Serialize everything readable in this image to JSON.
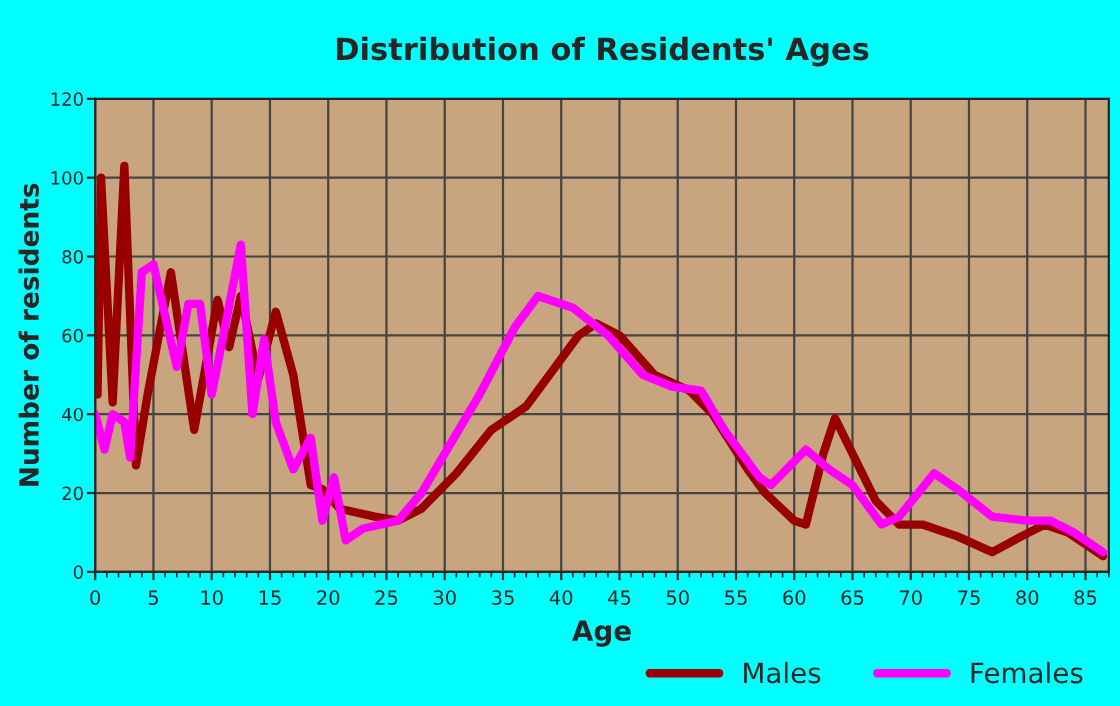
{
  "chart_data": {
    "type": "line",
    "title": "Distribution of Residents' Ages",
    "xlabel": "Age",
    "ylabel": "Number of residents",
    "xlim": [
      0,
      87
    ],
    "xticks": [
      0,
      5,
      10,
      15,
      20,
      25,
      30,
      35,
      40,
      45,
      50,
      55,
      60,
      65,
      70,
      75,
      80,
      85
    ],
    "ylim": [
      0,
      120
    ],
    "yticks": [
      0,
      20,
      40,
      60,
      80,
      100,
      120
    ],
    "grid": true,
    "legend": "bottom right",
    "series": [
      {
        "name": "Males",
        "color": "#990000",
        "x": [
          0,
          0.2,
          0.5,
          1.5,
          2.5,
          3.5,
          4.5,
          6.5,
          8.5,
          10.5,
          11.5,
          12.5,
          14,
          15.5,
          17,
          18.5,
          19.5,
          21,
          24,
          26,
          28,
          31,
          34,
          37,
          39,
          41.5,
          43,
          45,
          48,
          51,
          53,
          56,
          57.5,
          60,
          61,
          62.5,
          63.5,
          65,
          67,
          69,
          71,
          74,
          77,
          79.5,
          81.5,
          83.5,
          86.5
        ],
        "values": [
          64,
          45,
          100,
          43,
          103,
          27,
          45,
          76,
          36,
          69,
          57,
          70,
          49,
          66,
          50,
          22,
          21,
          16,
          14,
          13,
          16,
          25,
          36,
          42,
          50,
          60,
          63,
          60,
          50,
          46,
          40,
          26,
          20,
          13,
          12,
          30,
          39,
          30,
          18,
          12,
          12,
          9,
          5,
          9,
          12,
          10,
          4
        ]
      },
      {
        "name": "Females",
        "color": "#ff00ff",
        "x": [
          0,
          0.8,
          1.5,
          2.5,
          3,
          4,
          5,
          6,
          7,
          8,
          9,
          10,
          11,
          12.5,
          13.5,
          14.5,
          15.5,
          17,
          18.5,
          19.5,
          20.5,
          21.5,
          23,
          26,
          28,
          30,
          33,
          36,
          38,
          41,
          44,
          47,
          49.5,
          52,
          54,
          57,
          58,
          61,
          63,
          65,
          67.5,
          69,
          72,
          74,
          77,
          80,
          82,
          84,
          86.5
        ],
        "values": [
          40,
          31,
          40,
          38,
          29,
          76,
          78,
          65,
          52,
          68,
          68,
          45,
          60,
          83,
          40,
          59,
          38,
          26,
          34,
          13,
          24,
          8,
          11,
          13,
          20,
          30,
          45,
          62,
          70,
          67,
          60,
          50,
          47,
          46,
          36,
          24,
          22,
          31,
          26,
          22,
          12,
          14,
          25,
          21,
          14,
          13,
          13,
          10,
          5
        ]
      }
    ]
  }
}
